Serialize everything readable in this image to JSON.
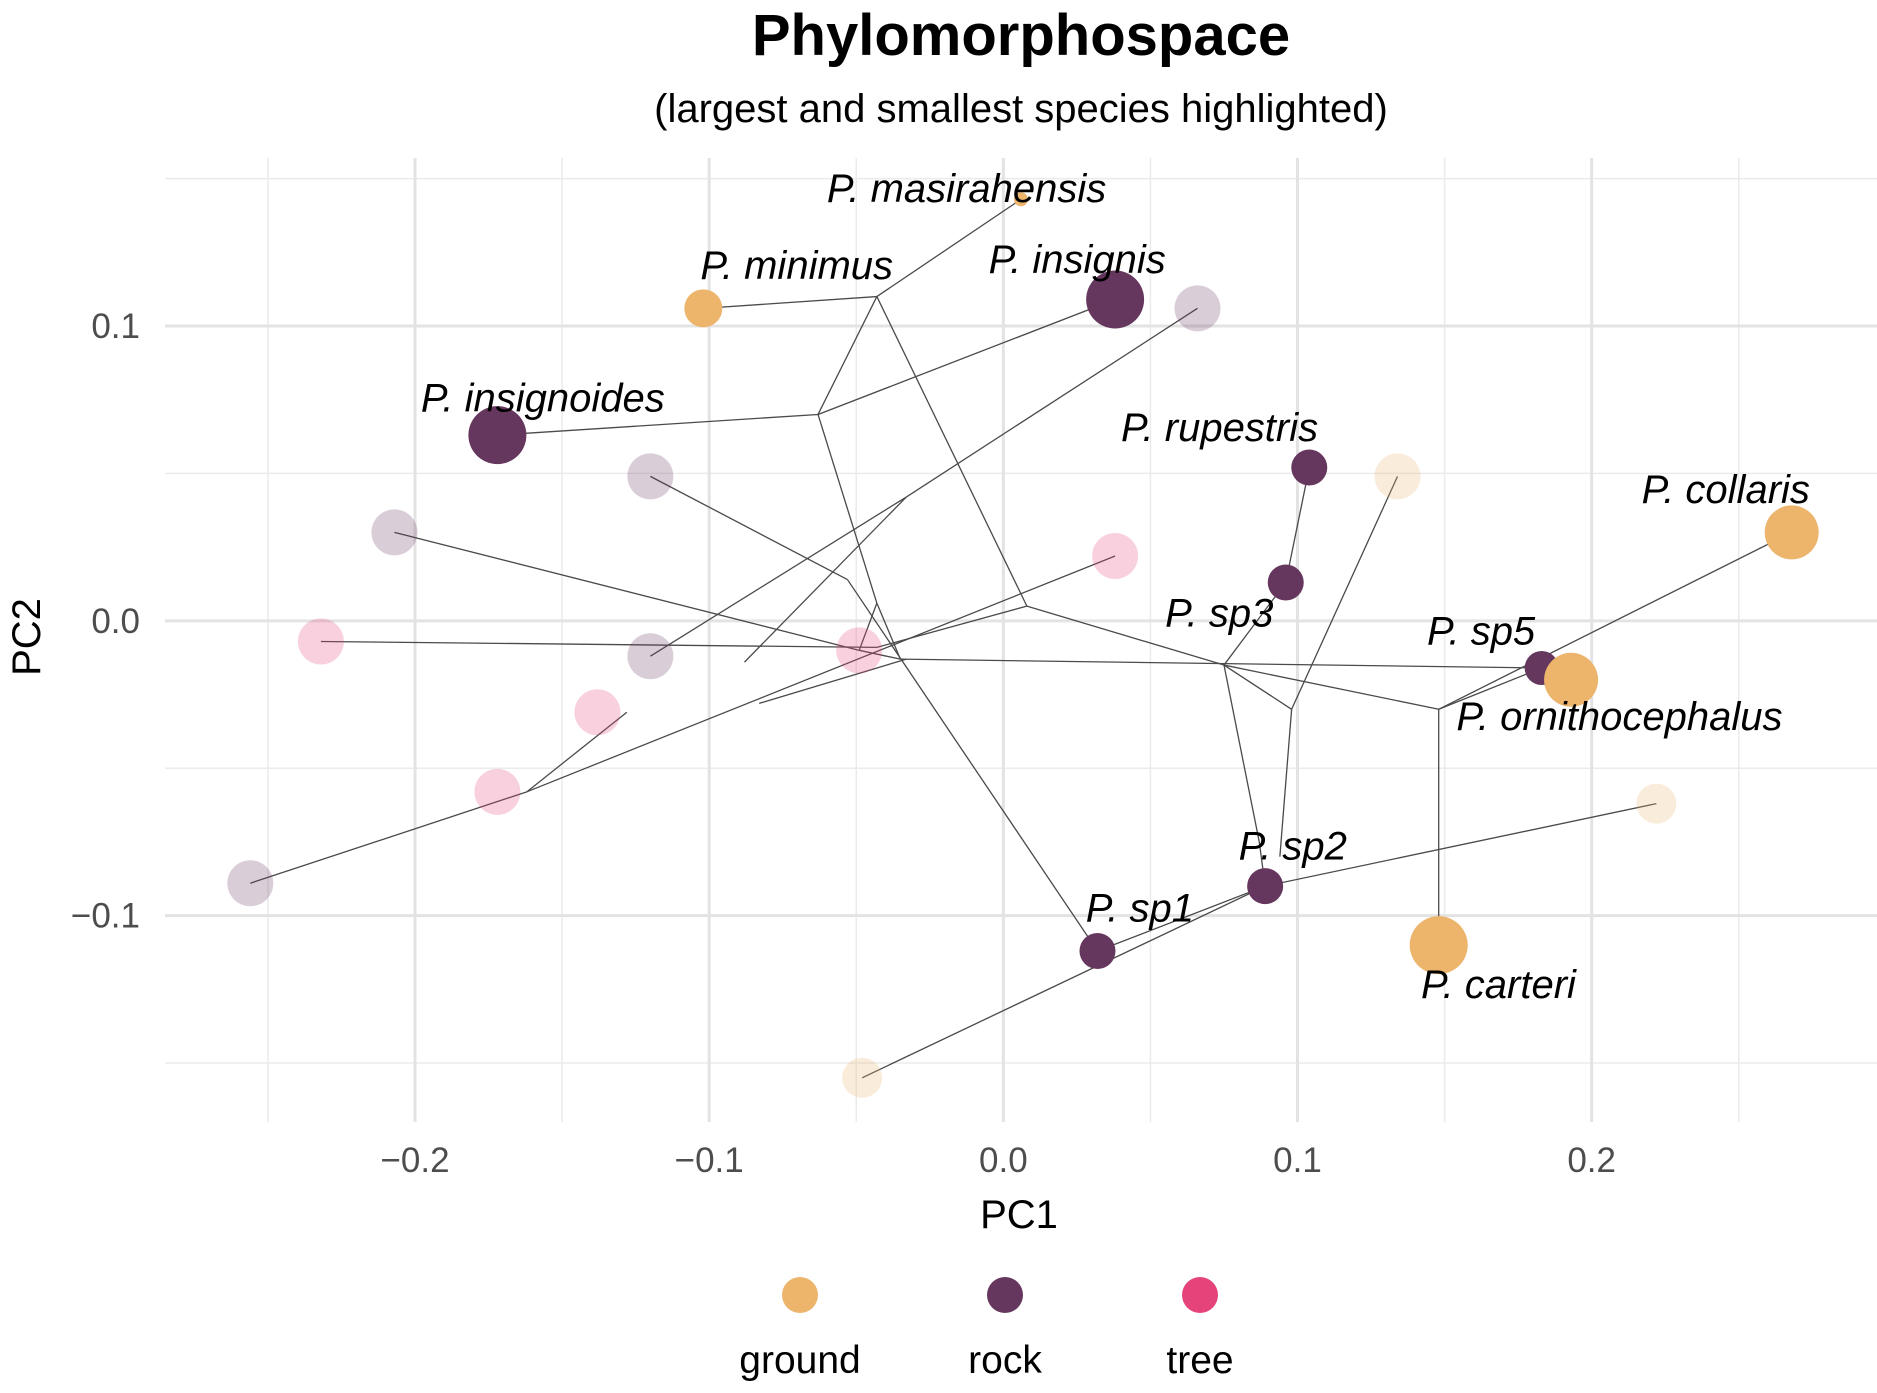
{
  "chart_data": {
    "type": "scatter",
    "title": "Phylomorphospace",
    "subtitle": "(largest and smallest species highlighted)",
    "xlabel": "PC1",
    "ylabel": "PC2",
    "xlim": [
      -0.285,
      0.297
    ],
    "ylim": [
      -0.17,
      0.157
    ],
    "x_ticks": [
      {
        "value": -0.2,
        "label": "−0.2"
      },
      {
        "value": -0.1,
        "label": "−0.1"
      },
      {
        "value": 0.0,
        "label": "0.0"
      },
      {
        "value": 0.1,
        "label": "0.1"
      },
      {
        "value": 0.2,
        "label": "0.2"
      }
    ],
    "y_ticks": [
      {
        "value": 0.1,
        "label": "0.1"
      },
      {
        "value": 0.0,
        "label": "0.0"
      },
      {
        "value": -0.1,
        "label": "−0.1"
      }
    ],
    "x_minor_ticks": [
      -0.25,
      -0.15,
      -0.05,
      0.05,
      0.15,
      0.25
    ],
    "y_minor_ticks": [
      0.15,
      0.05,
      -0.05,
      -0.15
    ],
    "grid": true,
    "legend_position": "bottom",
    "legend": [
      {
        "key": "ground",
        "label": "ground",
        "color": "#EDB46B"
      },
      {
        "key": "rock",
        "label": "rock",
        "color": "#66375E"
      },
      {
        "key": "tree",
        "label": "tree",
        "color": "#E5447A"
      }
    ],
    "colors": {
      "ground": "#EDB46B",
      "rock": "#66375E",
      "tree": "#E5447A"
    },
    "edges": [
      [
        -0.256,
        -0.089,
        -0.162,
        -0.058
      ],
      [
        -0.162,
        -0.058,
        -0.128,
        -0.031
      ],
      [
        -0.162,
        -0.058,
        0.038,
        0.022
      ],
      [
        -0.232,
        -0.007,
        -0.043,
        -0.009
      ],
      [
        -0.043,
        -0.009,
        0.008,
        0.005
      ],
      [
        -0.207,
        0.03,
        -0.049,
        -0.01
      ],
      [
        -0.049,
        -0.01,
        -0.035,
        -0.013
      ],
      [
        -0.035,
        -0.013,
        0.183,
        -0.016
      ],
      [
        -0.12,
        0.049,
        -0.053,
        0.014
      ],
      [
        -0.053,
        0.014,
        0.032,
        -0.112
      ],
      [
        -0.12,
        -0.012,
        -0.033,
        0.042
      ],
      [
        -0.033,
        0.042,
        0.066,
        0.106
      ],
      [
        -0.063,
        0.07,
        -0.172,
        0.063
      ],
      [
        -0.063,
        0.07,
        0.038,
        0.109
      ],
      [
        -0.063,
        0.07,
        -0.043,
        0.006
      ],
      [
        -0.043,
        0.006,
        -0.049,
        -0.01
      ],
      [
        -0.043,
        0.006,
        -0.035,
        -0.013
      ],
      [
        -0.043,
        0.11,
        -0.063,
        0.07
      ],
      [
        -0.043,
        0.11,
        -0.102,
        0.106
      ],
      [
        -0.043,
        0.11,
        0.006,
        0.143
      ],
      [
        -0.043,
        0.11,
        0.008,
        0.005
      ],
      [
        0.008,
        0.005,
        0.075,
        -0.015
      ],
      [
        0.075,
        -0.015,
        0.096,
        0.013
      ],
      [
        0.096,
        0.013,
        0.104,
        0.052
      ],
      [
        0.075,
        -0.015,
        0.087,
        -0.075
      ],
      [
        0.087,
        -0.075,
        0.089,
        -0.09
      ],
      [
        0.075,
        -0.015,
        0.098,
        -0.03
      ],
      [
        0.098,
        -0.03,
        0.094,
        -0.08
      ],
      [
        0.098,
        -0.03,
        0.134,
        0.049
      ],
      [
        0.032,
        -0.112,
        0.089,
        -0.09
      ],
      [
        0.089,
        -0.09,
        0.222,
        -0.062
      ],
      [
        0.089,
        -0.09,
        -0.048,
        -0.155
      ],
      [
        0.075,
        -0.015,
        0.148,
        -0.03
      ],
      [
        0.148,
        -0.03,
        0.148,
        -0.11
      ],
      [
        0.148,
        -0.03,
        0.268,
        0.03
      ],
      [
        0.148,
        -0.03,
        0.183,
        -0.016
      ],
      [
        0.183,
        -0.016,
        0.193,
        -0.02
      ],
      [
        -0.083,
        -0.028,
        -0.033,
        -0.013
      ],
      [
        -0.088,
        -0.014,
        -0.033,
        0.042
      ]
    ],
    "points": [
      {
        "x": 0.006,
        "y": 0.143,
        "habitat": "ground",
        "r": 7,
        "opacity": 1
      },
      {
        "x": -0.102,
        "y": 0.106,
        "habitat": "ground",
        "r": 19,
        "opacity": 1
      },
      {
        "x": 0.038,
        "y": 0.109,
        "habitat": "rock",
        "r": 29,
        "opacity": 1
      },
      {
        "x": 0.066,
        "y": 0.106,
        "habitat": "rock",
        "r": 23,
        "opacity": 0.25
      },
      {
        "x": -0.172,
        "y": 0.063,
        "habitat": "rock",
        "r": 29,
        "opacity": 1
      },
      {
        "x": -0.12,
        "y": 0.049,
        "habitat": "rock",
        "r": 23,
        "opacity": 0.25
      },
      {
        "x": -0.207,
        "y": 0.03,
        "habitat": "rock",
        "r": 23,
        "opacity": 0.25
      },
      {
        "x": -0.232,
        "y": -0.007,
        "habitat": "tree",
        "r": 23,
        "opacity": 0.25
      },
      {
        "x": 0.038,
        "y": 0.022,
        "habitat": "tree",
        "r": 23,
        "opacity": 0.25
      },
      {
        "x": -0.12,
        "y": -0.012,
        "habitat": "rock",
        "r": 23,
        "opacity": 0.25
      },
      {
        "x": -0.049,
        "y": -0.01,
        "habitat": "tree",
        "r": 23,
        "opacity": 0.25
      },
      {
        "x": -0.138,
        "y": -0.031,
        "habitat": "tree",
        "r": 23,
        "opacity": 0.25
      },
      {
        "x": -0.172,
        "y": -0.058,
        "habitat": "tree",
        "r": 23,
        "opacity": 0.25
      },
      {
        "x": -0.256,
        "y": -0.089,
        "habitat": "rock",
        "r": 23,
        "opacity": 0.25
      },
      {
        "x": 0.104,
        "y": 0.052,
        "habitat": "rock",
        "r": 18,
        "opacity": 1
      },
      {
        "x": 0.134,
        "y": 0.049,
        "habitat": "ground",
        "r": 23,
        "opacity": 0.25
      },
      {
        "x": 0.096,
        "y": 0.013,
        "habitat": "rock",
        "r": 18,
        "opacity": 1
      },
      {
        "x": 0.268,
        "y": 0.03,
        "habitat": "ground",
        "r": 27,
        "opacity": 1
      },
      {
        "x": 0.183,
        "y": -0.016,
        "habitat": "rock",
        "r": 17,
        "opacity": 1
      },
      {
        "x": 0.193,
        "y": -0.02,
        "habitat": "ground",
        "r": 27,
        "opacity": 1
      },
      {
        "x": 0.222,
        "y": -0.062,
        "habitat": "ground",
        "r": 20,
        "opacity": 0.25
      },
      {
        "x": 0.089,
        "y": -0.09,
        "habitat": "rock",
        "r": 18,
        "opacity": 1
      },
      {
        "x": 0.032,
        "y": -0.112,
        "habitat": "rock",
        "r": 18,
        "opacity": 1
      },
      {
        "x": 0.148,
        "y": -0.11,
        "habitat": "ground",
        "r": 29,
        "opacity": 1
      },
      {
        "x": -0.048,
        "y": -0.155,
        "habitat": "ground",
        "r": 20,
        "opacity": 0.25
      }
    ],
    "labels": [
      {
        "text": "P. masirahensis",
        "x": -0.06,
        "y": 0.142,
        "anchor": "start"
      },
      {
        "text": "P. minimus",
        "x": -0.103,
        "y": 0.116,
        "anchor": "start"
      },
      {
        "text": "P. insignis",
        "x": -0.005,
        "y": 0.118,
        "anchor": "start"
      },
      {
        "text": "P. insignoides",
        "x": -0.198,
        "y": 0.071,
        "anchor": "start"
      },
      {
        "text": "P. rupestris",
        "x": 0.04,
        "y": 0.061,
        "anchor": "start"
      },
      {
        "text": "P. collaris",
        "x": 0.217,
        "y": 0.04,
        "anchor": "start"
      },
      {
        "text": "P. sp3",
        "x": 0.055,
        "y": -0.002,
        "anchor": "start"
      },
      {
        "text": "P. sp5",
        "x": 0.144,
        "y": -0.008,
        "anchor": "start"
      },
      {
        "text": "P. ornithocephalus",
        "x": 0.154,
        "y": -0.037,
        "anchor": "start"
      },
      {
        "text": "P. sp2",
        "x": 0.08,
        "y": -0.081,
        "anchor": "start"
      },
      {
        "text": "P. sp1",
        "x": 0.028,
        "y": -0.102,
        "anchor": "start"
      },
      {
        "text": "P. carteri",
        "x": 0.142,
        "y": -0.128,
        "anchor": "start"
      }
    ]
  }
}
